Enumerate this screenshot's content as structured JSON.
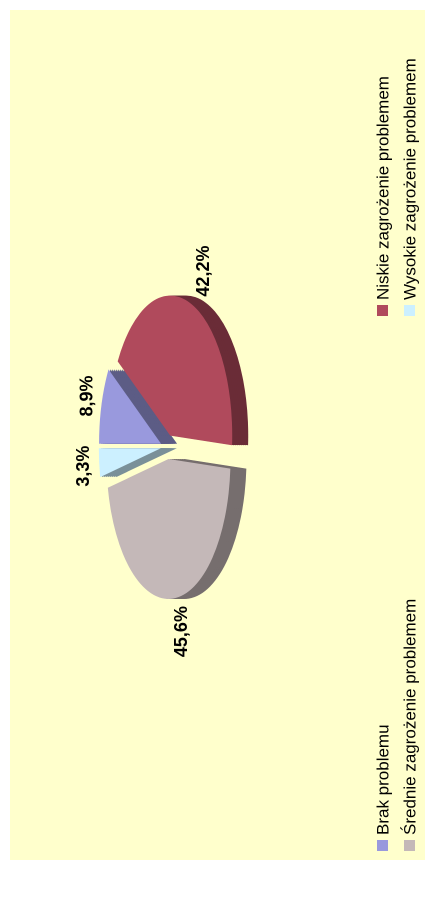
{
  "chart_data": {
    "type": "pie",
    "categories": [
      "Brak problemu",
      "Niskie zagrożenie problemem",
      "Średnie zagrożenie problemem",
      "Wysokie zagrożenie problemem"
    ],
    "values": [
      8.9,
      42.2,
      45.6,
      3.3
    ],
    "value_labels": [
      "8,9%",
      "42,2%",
      "45,6%",
      "3,3%"
    ],
    "colors": [
      "#9999dd",
      "#b04a5c",
      "#c4b8b8",
      "#ccf0ff"
    ],
    "legend": "bottom"
  }
}
